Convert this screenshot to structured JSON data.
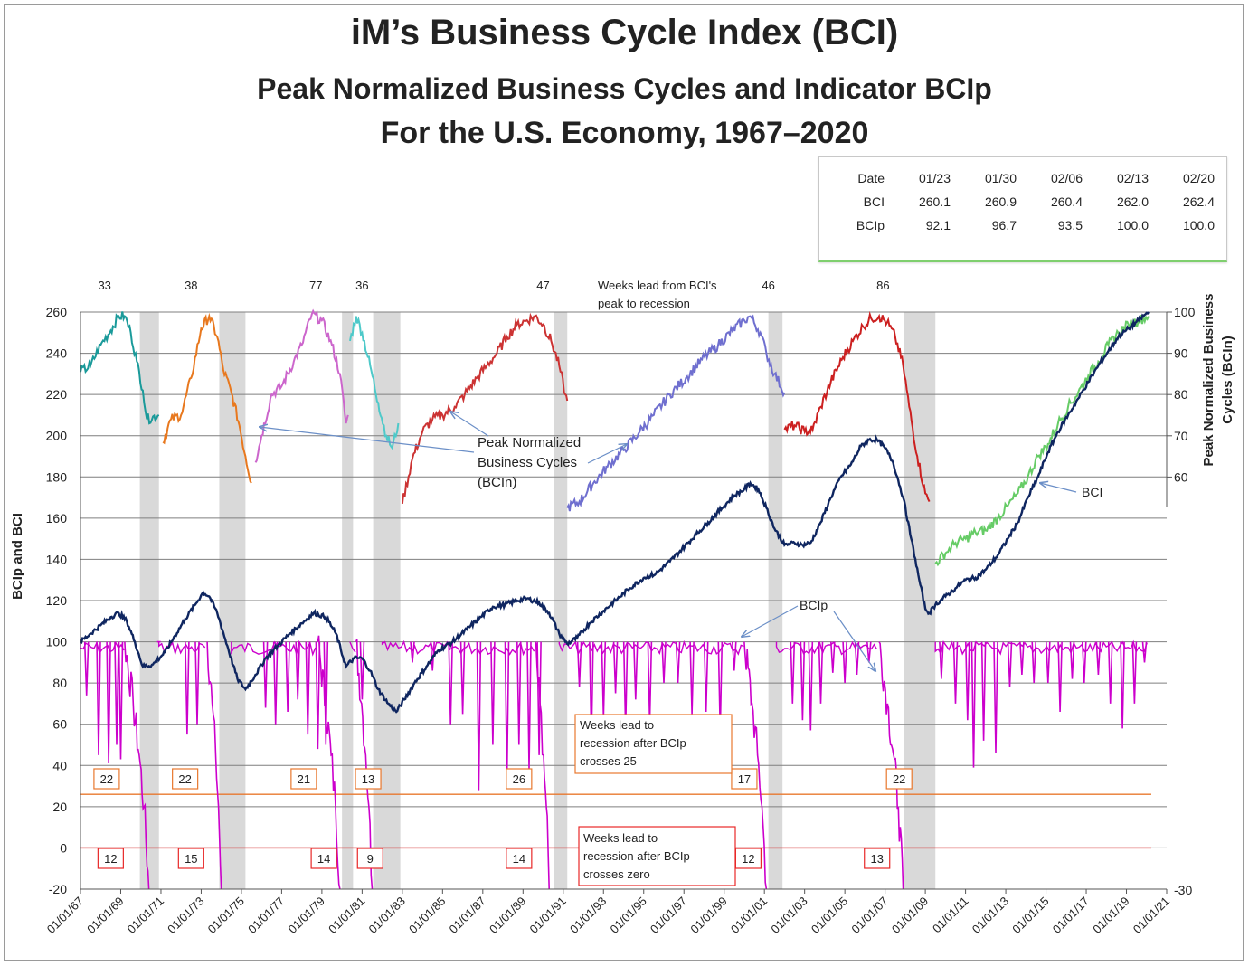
{
  "header": {
    "title": "iM’s Business Cycle Index (BCI)",
    "subtitle1": "Peak Normalized Business Cycles and Indicator BCIp",
    "subtitle2": "For the U.S. Economy, 1967–2020"
  },
  "stats_table": {
    "columns": [
      "Date",
      "01/23",
      "01/30",
      "02/06",
      "02/13",
      "02/20"
    ],
    "rows": [
      {
        "label": "BCI",
        "values": [
          "260.1",
          "260.9",
          "260.4",
          "262.0",
          "262.4"
        ]
      },
      {
        "label": "BCIp",
        "values": [
          "92.1",
          "96.7",
          "93.5",
          "100.0",
          "100.0"
        ]
      }
    ]
  },
  "chart_data": {
    "type": "line",
    "ylabel": "BCIp and BCI",
    "y2label": "Peak Normalized Business Cycles (BCIn)",
    "ylim": [
      -20,
      260
    ],
    "y_ticks": [
      "260",
      "240",
      "220",
      "200",
      "180",
      "160",
      "140",
      "120",
      "100",
      "80",
      "60",
      "40",
      "20",
      "0",
      "-20"
    ],
    "y2_ticks": [
      "100",
      "90",
      "80",
      "70",
      "60"
    ],
    "y2_bottom_fragment": "-30",
    "x_ticks": [
      "01/01/67",
      "01/01/69",
      "01/01/71",
      "01/01/73",
      "01/01/75",
      "01/01/77",
      "01/01/79",
      "01/01/81",
      "01/01/83",
      "01/01/85",
      "01/01/87",
      "01/01/89",
      "01/01/91",
      "01/01/93",
      "01/01/95",
      "01/01/97",
      "01/01/99",
      "01/01/01",
      "01/01/03",
      "01/01/05",
      "01/01/07",
      "01/01/09",
      "01/01/11",
      "01/01/13",
      "01/01/15",
      "01/01/17",
      "01/01/19",
      "01/01/21"
    ],
    "recessions": [
      [
        1969.95,
        1970.9
      ],
      [
        1973.9,
        1975.2
      ],
      [
        1980.0,
        1980.55
      ],
      [
        1981.55,
        1982.9
      ],
      [
        1990.55,
        1991.2
      ],
      [
        2001.2,
        2001.9
      ],
      [
        2007.95,
        2009.5
      ]
    ],
    "bci_series": [
      [
        1967.0,
        100
      ],
      [
        1967.5,
        104
      ],
      [
        1968.0,
        108
      ],
      [
        1968.5,
        112
      ],
      [
        1968.9,
        114
      ],
      [
        1969.3,
        110
      ],
      [
        1969.7,
        100
      ],
      [
        1970.1,
        88
      ],
      [
        1970.6,
        89
      ],
      [
        1971.2,
        95
      ],
      [
        1971.7,
        103
      ],
      [
        1972.2,
        111
      ],
      [
        1972.7,
        118
      ],
      [
        1973.1,
        124
      ],
      [
        1973.4,
        122
      ],
      [
        1973.8,
        114
      ],
      [
        1974.3,
        98
      ],
      [
        1974.8,
        82
      ],
      [
        1975.2,
        77
      ],
      [
        1975.7,
        84
      ],
      [
        1976.2,
        92
      ],
      [
        1976.8,
        98
      ],
      [
        1977.4,
        104
      ],
      [
        1978.0,
        109
      ],
      [
        1978.6,
        114
      ],
      [
        1979.2,
        112
      ],
      [
        1979.7,
        104
      ],
      [
        1980.2,
        88
      ],
      [
        1980.6,
        92
      ],
      [
        1981.0,
        92
      ],
      [
        1981.4,
        86
      ],
      [
        1981.8,
        77
      ],
      [
        1982.3,
        70
      ],
      [
        1982.7,
        66
      ],
      [
        1983.1,
        72
      ],
      [
        1983.6,
        80
      ],
      [
        1984.2,
        88
      ],
      [
        1984.8,
        96
      ],
      [
        1985.5,
        100
      ],
      [
        1986.2,
        106
      ],
      [
        1986.9,
        112
      ],
      [
        1987.5,
        117
      ],
      [
        1988.1,
        118
      ],
      [
        1988.7,
        120
      ],
      [
        1989.2,
        121
      ],
      [
        1989.8,
        119
      ],
      [
        1990.3,
        114
      ],
      [
        1990.8,
        104
      ],
      [
        1991.2,
        99
      ],
      [
        1991.7,
        102
      ],
      [
        1992.3,
        109
      ],
      [
        1993.0,
        115
      ],
      [
        1993.6,
        120
      ],
      [
        1994.3,
        126
      ],
      [
        1995.0,
        131
      ],
      [
        1995.6,
        133
      ],
      [
        1996.3,
        139
      ],
      [
        1996.9,
        145
      ],
      [
        1997.6,
        152
      ],
      [
        1998.2,
        158
      ],
      [
        1998.9,
        165
      ],
      [
        1999.5,
        171
      ],
      [
        2000.0,
        174
      ],
      [
        2000.3,
        177
      ],
      [
        2000.7,
        174
      ],
      [
        2001.1,
        165
      ],
      [
        2001.5,
        155
      ],
      [
        2002.0,
        147
      ],
      [
        2002.5,
        148
      ],
      [
        2002.9,
        147
      ],
      [
        2003.3,
        148
      ],
      [
        2003.8,
        158
      ],
      [
        2004.3,
        170
      ],
      [
        2004.8,
        180
      ],
      [
        2005.3,
        186
      ],
      [
        2005.8,
        195
      ],
      [
        2006.2,
        198
      ],
      [
        2006.6,
        198
      ],
      [
        2007.0,
        194
      ],
      [
        2007.4,
        187
      ],
      [
        2007.9,
        170
      ],
      [
        2008.3,
        150
      ],
      [
        2008.7,
        130
      ],
      [
        2009.0,
        116
      ],
      [
        2009.2,
        114
      ],
      [
        2009.5,
        118
      ],
      [
        2010.0,
        122
      ],
      [
        2010.5,
        126
      ],
      [
        2011.0,
        130
      ],
      [
        2011.5,
        131
      ],
      [
        2012.0,
        135
      ],
      [
        2012.6,
        142
      ],
      [
        2013.1,
        150
      ],
      [
        2013.6,
        158
      ],
      [
        2014.1,
        170
      ],
      [
        2014.6,
        180
      ],
      [
        2015.1,
        192
      ],
      [
        2015.6,
        202
      ],
      [
        2016.1,
        210
      ],
      [
        2016.6,
        218
      ],
      [
        2017.1,
        226
      ],
      [
        2017.6,
        234
      ],
      [
        2018.1,
        241
      ],
      [
        2018.6,
        248
      ],
      [
        2019.1,
        252
      ],
      [
        2019.6,
        256
      ],
      [
        2020.1,
        260
      ]
    ],
    "bcin_segments": [
      {
        "color": "#1a9a9a",
        "points": [
          [
            1967.0,
            231
          ],
          [
            1967.5,
            234
          ],
          [
            1968.0,
            244
          ],
          [
            1968.5,
            251
          ],
          [
            1968.9,
            258
          ],
          [
            1969.2,
            258
          ],
          [
            1969.5,
            250
          ],
          [
            1969.8,
            236
          ],
          [
            1970.1,
            222
          ],
          [
            1970.3,
            208
          ],
          [
            1970.9,
            210
          ]
        ]
      },
      {
        "color": "#e8781e",
        "points": [
          [
            1971.1,
            197
          ],
          [
            1971.5,
            208
          ],
          [
            1972.0,
            210
          ],
          [
            1972.5,
            228
          ],
          [
            1973.0,
            252
          ],
          [
            1973.4,
            258
          ],
          [
            1973.8,
            248
          ],
          [
            1974.1,
            232
          ],
          [
            1974.5,
            221
          ],
          [
            1974.9,
            205
          ],
          [
            1975.2,
            190
          ],
          [
            1975.5,
            177
          ]
        ]
      },
      {
        "color": "#cc66cc",
        "points": [
          [
            1975.7,
            187
          ],
          [
            1976.0,
            200
          ],
          [
            1976.5,
            220
          ],
          [
            1977.0,
            224
          ],
          [
            1977.6,
            236
          ],
          [
            1978.0,
            244
          ],
          [
            1978.5,
            259
          ],
          [
            1979.0,
            256
          ],
          [
            1979.5,
            244
          ],
          [
            1979.9,
            230
          ],
          [
            1980.2,
            206
          ],
          [
            1980.3,
            210
          ]
        ]
      },
      {
        "color": "#4ec9c9",
        "points": [
          [
            1980.4,
            246
          ],
          [
            1980.7,
            258
          ],
          [
            1981.0,
            250
          ],
          [
            1981.4,
            234
          ],
          [
            1981.8,
            216
          ],
          [
            1982.2,
            200
          ],
          [
            1982.5,
            194
          ],
          [
            1982.8,
            206
          ]
        ]
      },
      {
        "color": "#cc3333",
        "points": [
          [
            1983.0,
            167
          ],
          [
            1983.5,
            189
          ],
          [
            1984.0,
            202
          ],
          [
            1984.5,
            208
          ],
          [
            1985.0,
            210
          ],
          [
            1985.6,
            214
          ],
          [
            1986.1,
            220
          ],
          [
            1986.7,
            228
          ],
          [
            1987.2,
            234
          ],
          [
            1987.7,
            240
          ],
          [
            1988.2,
            248
          ],
          [
            1988.7,
            254
          ],
          [
            1989.2,
            256
          ],
          [
            1989.6,
            258
          ],
          [
            1990.0,
            254
          ],
          [
            1990.4,
            246
          ],
          [
            1990.8,
            234
          ],
          [
            1991.1,
            220
          ],
          [
            1991.2,
            217
          ]
        ]
      },
      {
        "color": "#6f6fcf",
        "points": [
          [
            1991.2,
            165
          ],
          [
            1991.8,
            168
          ],
          [
            1992.5,
            177
          ],
          [
            1993.2,
            185
          ],
          [
            1994.0,
            193
          ],
          [
            1994.8,
            202
          ],
          [
            1995.5,
            210
          ],
          [
            1996.3,
            220
          ],
          [
            1997.1,
            228
          ],
          [
            1997.9,
            237
          ],
          [
            1998.7,
            244
          ],
          [
            1999.4,
            251
          ],
          [
            2000.0,
            256
          ],
          [
            2000.3,
            258
          ],
          [
            2000.8,
            250
          ],
          [
            2001.1,
            240
          ],
          [
            2001.5,
            230
          ],
          [
            2002.0,
            221
          ]
        ]
      },
      {
        "color": "#cc2020",
        "points": [
          [
            2002.0,
            203
          ],
          [
            2002.5,
            205
          ],
          [
            2003.0,
            202
          ],
          [
            2003.4,
            203
          ],
          [
            2003.8,
            214
          ],
          [
            2004.3,
            226
          ],
          [
            2004.9,
            238
          ],
          [
            2005.4,
            246
          ],
          [
            2005.9,
            253
          ],
          [
            2006.3,
            257
          ],
          [
            2006.7,
            258
          ],
          [
            2007.1,
            255
          ],
          [
            2007.5,
            248
          ],
          [
            2007.9,
            234
          ],
          [
            2008.2,
            214
          ],
          [
            2008.6,
            190
          ],
          [
            2009.0,
            172
          ],
          [
            2009.2,
            168
          ]
        ]
      },
      {
        "color": "#66cc66",
        "points": [
          [
            2009.5,
            138
          ],
          [
            2010.0,
            143
          ],
          [
            2010.5,
            148
          ],
          [
            2011.0,
            150
          ],
          [
            2011.5,
            153
          ],
          [
            2012.0,
            154
          ],
          [
            2012.6,
            160
          ],
          [
            2013.1,
            166
          ],
          [
            2013.6,
            172
          ],
          [
            2014.1,
            180
          ],
          [
            2014.6,
            190
          ],
          [
            2015.1,
            196
          ],
          [
            2015.6,
            206
          ],
          [
            2016.1,
            214
          ],
          [
            2016.6,
            221
          ],
          [
            2017.1,
            229
          ],
          [
            2017.6,
            236
          ],
          [
            2018.1,
            244
          ],
          [
            2018.6,
            250
          ],
          [
            2019.1,
            254
          ],
          [
            2019.6,
            256
          ],
          [
            2020.1,
            258
          ]
        ]
      }
    ],
    "bcip_drops": [
      [
        1967.3,
        74
      ],
      [
        1967.9,
        45
      ],
      [
        1968.4,
        41
      ],
      [
        1968.8,
        50
      ],
      [
        1969.0,
        43
      ],
      [
        1970.9,
        100
      ],
      [
        1972.3,
        55
      ],
      [
        1972.8,
        60
      ],
      [
        1976.2,
        68
      ],
      [
        1976.7,
        60
      ],
      [
        1977.3,
        66
      ],
      [
        1977.8,
        72
      ],
      [
        1978.3,
        55
      ],
      [
        1978.8,
        48
      ],
      [
        1979.2,
        50
      ],
      [
        1981.0,
        72
      ],
      [
        1983.5,
        90
      ],
      [
        1984.5,
        86
      ],
      [
        1985.4,
        60
      ],
      [
        1986.0,
        65
      ],
      [
        1986.8,
        28
      ],
      [
        1987.5,
        50
      ],
      [
        1988.2,
        30
      ],
      [
        1988.8,
        50
      ],
      [
        1989.3,
        38
      ],
      [
        1989.8,
        45
      ],
      [
        1991.8,
        78
      ],
      [
        1992.4,
        50
      ],
      [
        1993.0,
        63
      ],
      [
        1993.6,
        75
      ],
      [
        1994.1,
        57
      ],
      [
        1994.6,
        72
      ],
      [
        1995.3,
        60
      ],
      [
        1996.0,
        80
      ],
      [
        1996.7,
        80
      ],
      [
        1997.4,
        65
      ],
      [
        1998.1,
        66
      ],
      [
        1998.8,
        56
      ],
      [
        1999.5,
        86
      ],
      [
        2002.4,
        70
      ],
      [
        2002.9,
        62
      ],
      [
        2003.3,
        57
      ],
      [
        2003.8,
        70
      ],
      [
        2004.4,
        85
      ],
      [
        2005.0,
        80
      ],
      [
        2005.6,
        84
      ],
      [
        2006.2,
        90
      ],
      [
        2009.8,
        82
      ],
      [
        2010.5,
        70
      ],
      [
        2011.1,
        62
      ],
      [
        2011.4,
        39
      ],
      [
        2011.9,
        52
      ],
      [
        2012.5,
        46
      ],
      [
        2013.2,
        78
      ],
      [
        2013.8,
        84
      ],
      [
        2014.4,
        80
      ],
      [
        2015.1,
        80
      ],
      [
        2015.7,
        66
      ],
      [
        2016.3,
        82
      ],
      [
        2016.9,
        80
      ],
      [
        2017.6,
        84
      ],
      [
        2018.2,
        70
      ],
      [
        2018.8,
        58
      ],
      [
        2019.4,
        70
      ],
      [
        2019.9,
        90
      ]
    ],
    "bcip_falls": [
      [
        1969.2,
        1970.4
      ],
      [
        1973.3,
        1974.0
      ],
      [
        1978.8,
        1979.9
      ],
      [
        1980.7,
        1981.5
      ],
      [
        1989.6,
        1990.3
      ],
      [
        2000.0,
        2001.1
      ],
      [
        2006.7,
        2007.9
      ]
    ],
    "threshold_lines": [
      {
        "value": 26,
        "color": "#e8782e"
      },
      {
        "value": 0,
        "color": "#e82828"
      }
    ],
    "lead_labels_top": [
      {
        "text": "33",
        "x": 1968.2
      },
      {
        "text": "38",
        "x": 1972.5
      },
      {
        "text": "77",
        "x": 1978.7
      },
      {
        "text": "36",
        "x": 1981.0
      },
      {
        "text": "47",
        "x": 1990.0
      },
      {
        "text": "46",
        "x": 2001.2
      },
      {
        "text": "86",
        "x": 2006.9
      }
    ],
    "lead_note_top": [
      "Weeks lead from BCI's",
      "peak to recession"
    ],
    "boxes_25": [
      {
        "text": "22",
        "x": 1968.3
      },
      {
        "text": "22",
        "x": 1972.2
      },
      {
        "text": "21",
        "x": 1978.1
      },
      {
        "text": "13",
        "x": 1981.3
      },
      {
        "text": "26",
        "x": 1988.8
      },
      {
        "text": "17",
        "x": 2000.0
      },
      {
        "text": "22",
        "x": 2007.7
      }
    ],
    "boxes_0": [
      {
        "text": "12",
        "x": 1968.5
      },
      {
        "text": "15",
        "x": 1972.5
      },
      {
        "text": "14",
        "x": 1979.1
      },
      {
        "text": "9",
        "x": 1981.4
      },
      {
        "text": "14",
        "x": 1988.8
      },
      {
        "text": "12",
        "x": 2000.2
      },
      {
        "text": "13",
        "x": 2006.6
      }
    ],
    "annotation_25": [
      "Weeks lead to",
      "recession after BCIp",
      "crosses 25"
    ],
    "annotation_0": [
      "Weeks lead  to",
      "recession after BCIp",
      "crosses zero"
    ],
    "callout_bcin": [
      "Peak Normalized",
      "Business Cycles",
      "(BCIn)"
    ],
    "callout_bci": "BCI",
    "callout_bcip": "BCIp"
  }
}
